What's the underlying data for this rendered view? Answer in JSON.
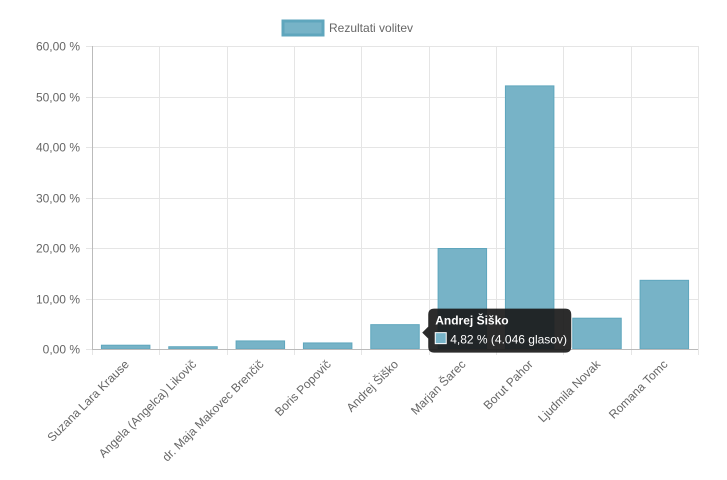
{
  "chart_data": {
    "type": "bar",
    "categories": [
      "Suzana Lara Krause",
      "Angela (Angelca) Likovič",
      "dr. Maja Makovec Brenčič",
      "Boris Popovič",
      "Andrej Šiško",
      "Marjan Šarec",
      "Borut Pahor",
      "Ljudmila Novak",
      "Romana Tomc"
    ],
    "series": [
      {
        "name": "Rezultati volitev",
        "values": [
          0.75,
          0.45,
          1.6,
          1.2,
          4.82,
          19.9,
          52.1,
          6.1,
          13.6
        ]
      }
    ],
    "ylim": [
      0,
      60
    ],
    "y_ticks": [
      0,
      10,
      20,
      30,
      40,
      50,
      60
    ],
    "y_tick_labels": [
      "0,00 %",
      "10,00 %",
      "20,00 %",
      "30,00 %",
      "40,00 %",
      "50,00 %",
      "60,00 %"
    ],
    "grid": true,
    "legend_position": "top",
    "colors": {
      "bar_fill": "#77b3c7",
      "bar_border": "#5fa6bd",
      "grid": "#e5e5e5",
      "axis": "#bbbbbb",
      "tooltip_bg": "#1a1a1a"
    },
    "tooltip": {
      "category_index": 4,
      "title": "Andrej Šiško",
      "body": "4,82 % (4.046 glasov)"
    }
  }
}
